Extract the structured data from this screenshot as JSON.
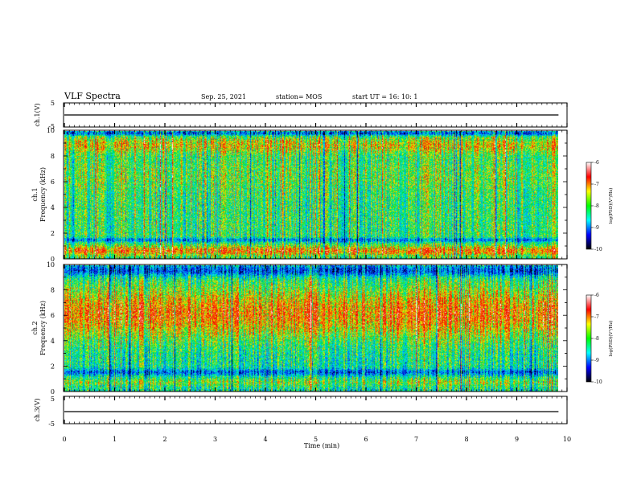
{
  "header": {
    "title": "VLF Spectra",
    "date": "Sep. 25, 2021",
    "station": "station= MOS",
    "start_ut": "start  UT =   16: 10: 1"
  },
  "chart_data": [
    {
      "type": "line",
      "panel": "ch1-voltage",
      "ylabel": "ch.1(V)",
      "xlim": [
        0,
        10
      ],
      "ylim": [
        -5,
        5
      ],
      "yticks": [
        "5",
        "-5"
      ],
      "baseline_v": 0,
      "data_xmax": 9.83
    },
    {
      "type": "heatmap",
      "panel": "ch1-spectrogram",
      "ylabel": "ch.1\nFrequency (kHz)",
      "ylabel_line1": "ch.1",
      "ylabel_line2": "Frequency (kHz)",
      "xlim": [
        0,
        10
      ],
      "ylim": [
        0,
        10
      ],
      "yticks": [
        "0",
        "2",
        "4",
        "6",
        "8",
        "10"
      ],
      "data_xmax": 9.83,
      "intensity_profile": "broadband noise 0-10 kHz, many vertical sferics; strongest 0.3-1 kHz and 8-9.5 kHz",
      "colorbar": {
        "label": "log(PSD)(V²/Hz)",
        "range": [
          -10,
          -6
        ],
        "ticks": [
          "-6",
          "-7",
          "-8",
          "-9",
          "-10"
        ],
        "colors": [
          "#ffffff",
          "#ff0000",
          "#ffff00",
          "#00ff00",
          "#00ffff",
          "#0000ff",
          "#000000"
        ]
      }
    },
    {
      "type": "heatmap",
      "panel": "ch2-spectrogram",
      "ylabel": "ch.2\nFrequency (kHz)",
      "ylabel_line1": "ch.2",
      "ylabel_line2": "Frequency (kHz)",
      "xlim": [
        0,
        10
      ],
      "ylim": [
        0,
        10
      ],
      "yticks": [
        "0",
        "2",
        "4",
        "6",
        "8",
        "10"
      ],
      "data_xmax": 9.83,
      "intensity_profile": "strongest 3-8.5 kHz, weaker below 2 kHz and above 9 kHz",
      "colorbar": {
        "label": "log(PSD)(V²/Hz)",
        "range": [
          -10,
          -6
        ],
        "ticks": [
          "-6",
          "-7",
          "-8",
          "-9",
          "-10"
        ],
        "colors": [
          "#ffffff",
          "#ff0000",
          "#ffff00",
          "#00ff00",
          "#00ffff",
          "#0000ff",
          "#000000"
        ]
      }
    },
    {
      "type": "line",
      "panel": "ch3-voltage",
      "ylabel": "ch.3(V)",
      "xlim": [
        0,
        10
      ],
      "ylim": [
        -5,
        5
      ],
      "yticks": [
        "5",
        "-5"
      ],
      "baseline_v": 0,
      "data_xmax": 9.83,
      "xlabel": "Time  (min)",
      "xticks": [
        "0",
        "1",
        "2",
        "3",
        "4",
        "5",
        "6",
        "7",
        "8",
        "9",
        "10"
      ]
    }
  ]
}
